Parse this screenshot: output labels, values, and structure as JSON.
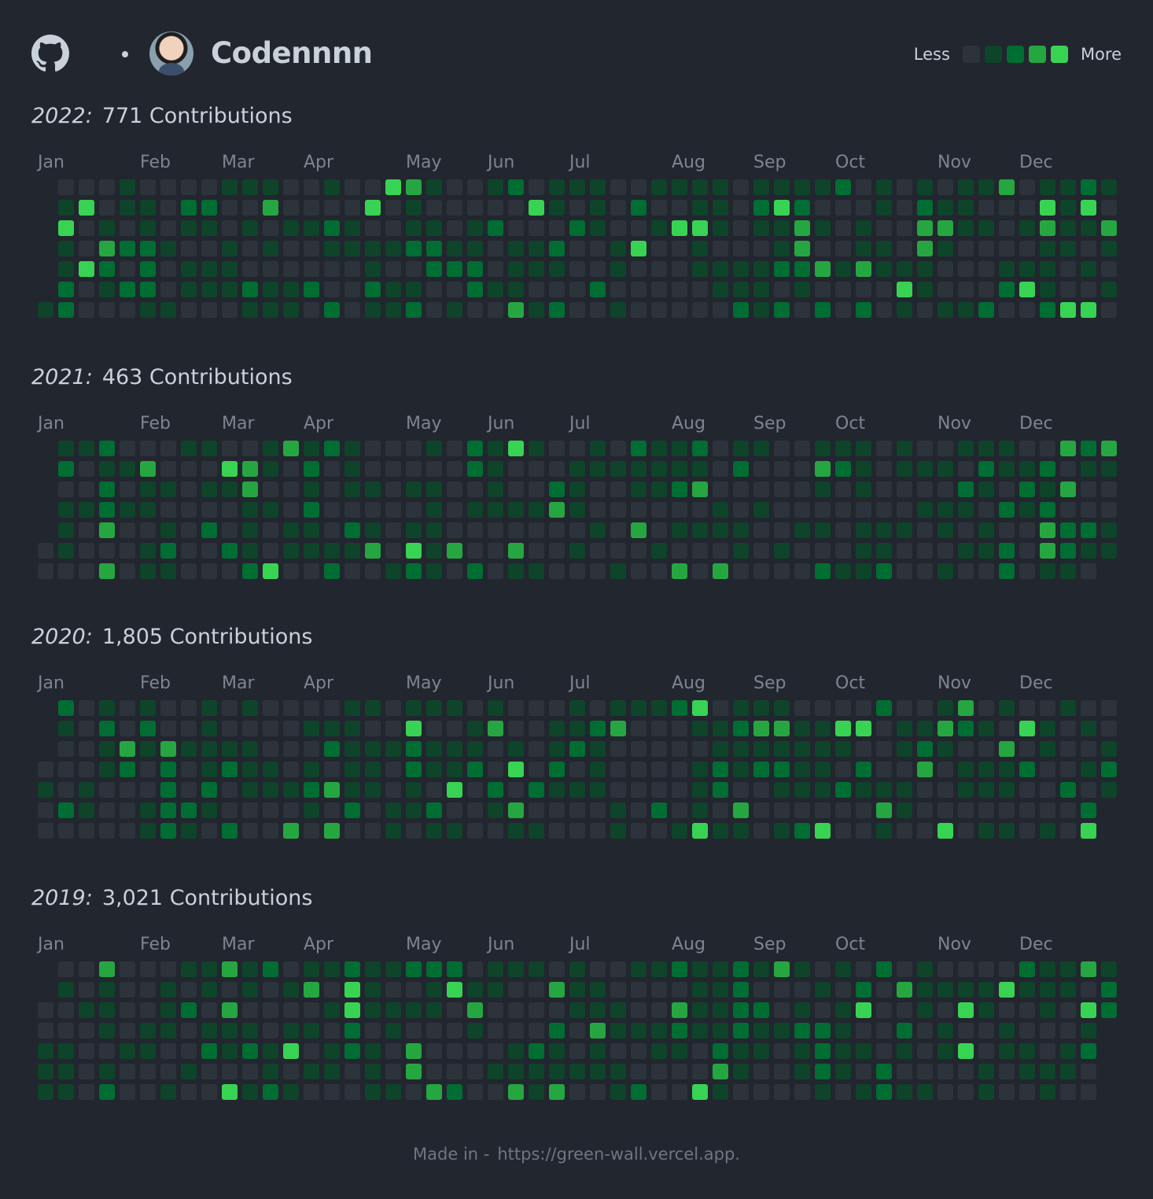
{
  "header": {
    "username": "Codennnn",
    "legend_less": "Less",
    "legend_more": "More",
    "levels": [
      "#2d333b",
      "#0e4429",
      "#006d32",
      "#26a641",
      "#39d353"
    ]
  },
  "months": [
    "Jan",
    "Feb",
    "Mar",
    "Apr",
    "May",
    "Jun",
    "Jul",
    "Aug",
    "Sep",
    "Oct",
    "Nov",
    "Dec"
  ],
  "years": [
    {
      "year": "2022:",
      "contributions": "771 Contributions",
      "start_day": 6,
      "days": 365
    },
    {
      "year": "2021:",
      "contributions": "463 Contributions",
      "start_day": 5,
      "days": 365
    },
    {
      "year": "2020:",
      "contributions": "1,805 Contributions",
      "start_day": 3,
      "days": 366
    },
    {
      "year": "2019:",
      "contributions": "3,021 Contributions",
      "start_day": 2,
      "days": 365
    }
  ],
  "footer": {
    "made_in": "Made in -",
    "url": "https://green-wall.vercel.app."
  }
}
